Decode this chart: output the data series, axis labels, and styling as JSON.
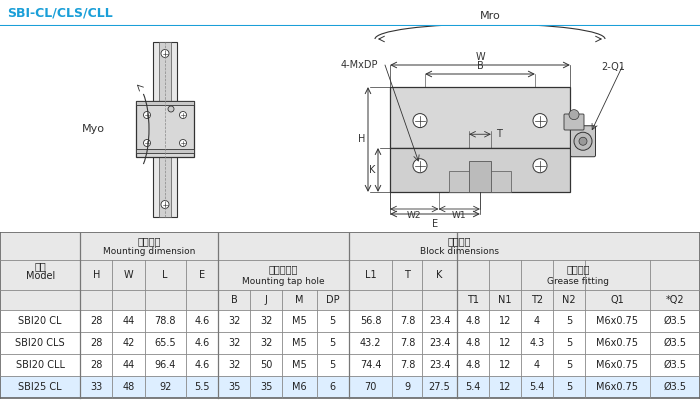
{
  "title": "SBI-CL/CLS/CLL",
  "title_color": "#1a9fd8",
  "bg_color": "#f0f0f0",
  "table_bg": "#ffffff",
  "header_bg": "#e0e0e0",
  "border_color": "#aaaaaa",
  "header_chinese_1": "安装尺寸",
  "header_english_1": "Mounting dimension",
  "header_chinese_2": "滑块尺寸",
  "header_english_2": "Block dimensions",
  "header_chinese_3": "安装螺纹孔",
  "header_english_3": "Mounting tap hole",
  "header_chinese_4": "注油部件",
  "header_english_4": "Grease fitting",
  "col_model_zh": "型号",
  "col_model_en": "Model",
  "rows": [
    [
      "SBI20 CL",
      "28",
      "44",
      "78.8",
      "4.6",
      "32",
      "32",
      "M5",
      "5",
      "56.8",
      "7.8",
      "23.4",
      "4.8",
      "12",
      "4",
      "5",
      "M6x0.75",
      "Ø3.5"
    ],
    [
      "SBI20 CLS",
      "28",
      "42",
      "65.5",
      "4.6",
      "32",
      "32",
      "M5",
      "5",
      "43.2",
      "7.8",
      "23.4",
      "4.8",
      "12",
      "4.3",
      "5",
      "M6x0.75",
      "Ø3.5"
    ],
    [
      "SBI20 CLL",
      "28",
      "44",
      "96.4",
      "4.6",
      "32",
      "50",
      "M5",
      "5",
      "74.4",
      "7.8",
      "23.4",
      "4.8",
      "12",
      "4",
      "5",
      "M6x0.75",
      "Ø3.5"
    ],
    [
      "SBI25 CL",
      "33",
      "48",
      "92",
      "5.5",
      "35",
      "35",
      "M6",
      "6",
      "70",
      "9",
      "27.5",
      "5.4",
      "12",
      "5.4",
      "5",
      "M6x0.75",
      "Ø3.5"
    ]
  ]
}
